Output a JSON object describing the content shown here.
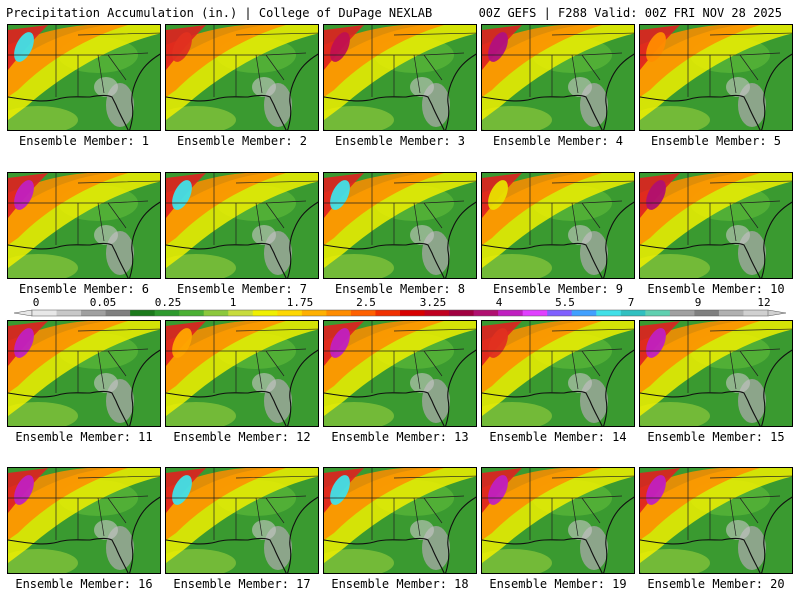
{
  "header": {
    "left": "Precipitation Accumulation (in.) | College of DuPage NEXLAB",
    "right": "00Z GEFS | F288 Valid: 00Z FRI NOV 28 2025"
  },
  "panels": [
    {
      "label": "Ensemble Member: 1",
      "max_color": "#40e0e8"
    },
    {
      "label": "Ensemble Member: 2",
      "max_color": "#e03020"
    },
    {
      "label": "Ensemble Member: 3",
      "max_color": "#c01050"
    },
    {
      "label": "Ensemble Member: 4",
      "max_color": "#b01080"
    },
    {
      "label": "Ensemble Member: 5",
      "max_color": "#ff8c00"
    },
    {
      "label": "Ensemble Member: 6",
      "max_color": "#c020c0"
    },
    {
      "label": "Ensemble Member: 7",
      "max_color": "#40e0e8"
    },
    {
      "label": "Ensemble Member: 8",
      "max_color": "#40e0e8"
    },
    {
      "label": "Ensemble Member: 9",
      "max_color": "#e8e000"
    },
    {
      "label": "Ensemble Member: 10",
      "max_color": "#b01070"
    },
    {
      "label": "Ensemble Member: 11",
      "max_color": "#c020c0"
    },
    {
      "label": "Ensemble Member: 12",
      "max_color": "#ffa500"
    },
    {
      "label": "Ensemble Member: 13",
      "max_color": "#c020c0"
    },
    {
      "label": "Ensemble Member: 14",
      "max_color": "#e03020"
    },
    {
      "label": "Ensemble Member: 15",
      "max_color": "#c020c0"
    },
    {
      "label": "Ensemble Member: 16",
      "max_color": "#c020c0"
    },
    {
      "label": "Ensemble Member: 17",
      "max_color": "#40e0e8"
    },
    {
      "label": "Ensemble Member: 18",
      "max_color": "#40e0e8"
    },
    {
      "label": "Ensemble Member: 19",
      "max_color": "#c020c0"
    },
    {
      "label": "Ensemble Member: 20",
      "max_color": "#c020c0"
    }
  ],
  "colorbar": {
    "labels": [
      "0",
      "0.05",
      "0.25",
      "1",
      "1.75",
      "2.5",
      "3.25",
      "4",
      "5.5",
      "7",
      "9",
      "12"
    ],
    "colors": [
      "#e8e8e8",
      "#c8c8c8",
      "#a0a0a0",
      "#808080",
      "#1c7a1c",
      "#2e9a2e",
      "#4cb034",
      "#8cc83c",
      "#c8dc3c",
      "#f0f000",
      "#ffd800",
      "#ffb000",
      "#ff8c00",
      "#ff6000",
      "#f03000",
      "#d80000",
      "#c00020",
      "#a00040",
      "#b01070",
      "#c020c0",
      "#e040ff",
      "#8060ff",
      "#40a0ff",
      "#40e0e8",
      "#30c0c0",
      "#60d0b0",
      "#a0a0a0",
      "#808080",
      "#b0b0b0",
      "#d0d0d0"
    ]
  }
}
